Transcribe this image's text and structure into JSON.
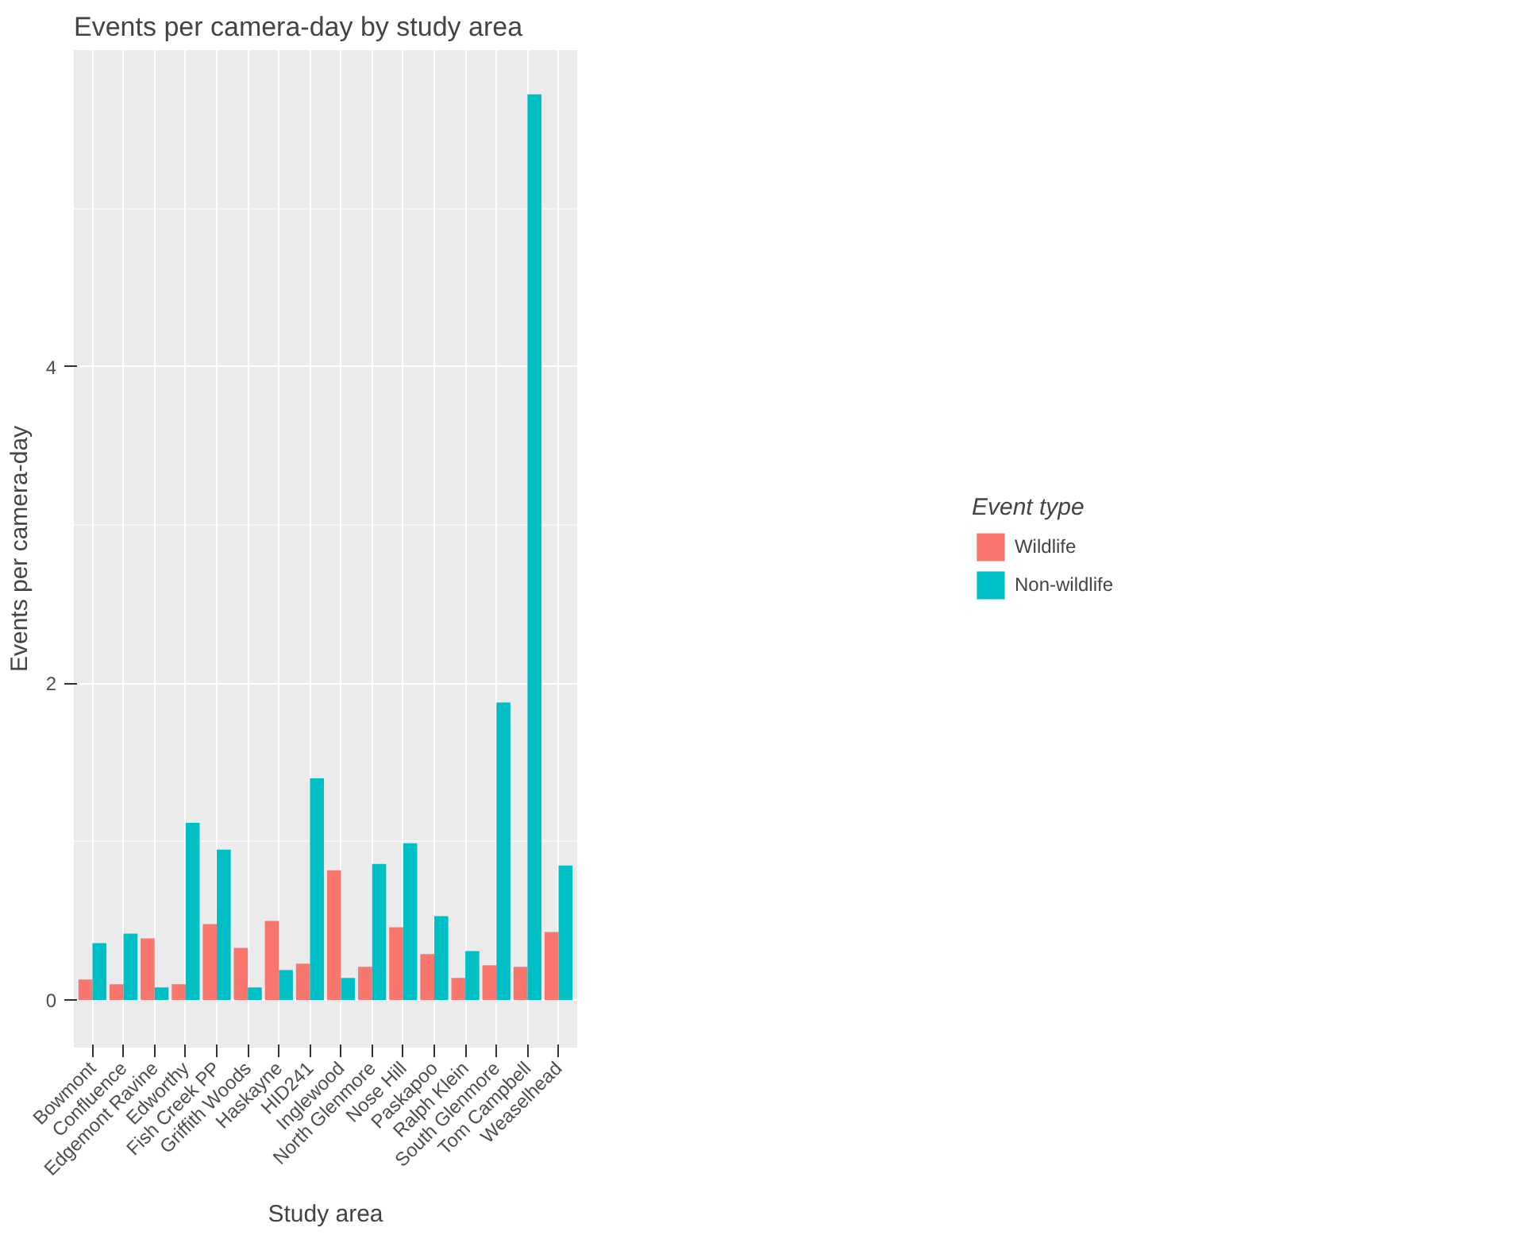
{
  "chart_data": {
    "type": "bar",
    "title": "Events per camera-day by study area",
    "xlabel": "Study area",
    "ylabel": "Events per camera-day",
    "legend_title": "Event type",
    "categories": [
      "Bowmont",
      "Confluence",
      "Edgemont Ravine",
      "Edworthy",
      "Fish Creek PP",
      "Griffith Woods",
      "Haskayne",
      "HID241",
      "Inglewood",
      "North Glenmore",
      "Nose Hill",
      "Paskapoo",
      "Ralph Klein",
      "South Glenmore",
      "Tom Campbell",
      "Weaselhead"
    ],
    "series": [
      {
        "name": "Wildlife",
        "color": "#f8766d",
        "values": [
          0.13,
          0.1,
          0.39,
          0.1,
          0.48,
          0.33,
          0.5,
          0.23,
          0.82,
          0.21,
          0.46,
          0.29,
          0.14,
          0.22,
          0.21,
          0.43
        ]
      },
      {
        "name": "Non-wildlife",
        "color": "#00bfc4",
        "values": [
          0.36,
          0.42,
          0.08,
          1.12,
          0.95,
          0.08,
          0.19,
          1.4,
          0.14,
          0.86,
          0.99,
          0.53,
          0.31,
          1.88,
          5.72,
          0.85
        ]
      }
    ],
    "ylim": [
      -0.3,
      6.0
    ],
    "yticks": [
      0,
      2,
      4
    ],
    "grid": true,
    "legend": "right"
  }
}
